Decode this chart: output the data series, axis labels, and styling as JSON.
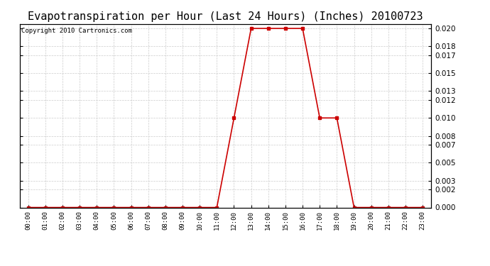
{
  "title": "Evapotranspiration per Hour (Last 24 Hours) (Inches) 20100723",
  "copyright_text": "Copyright 2010 Cartronics.com",
  "x_labels": [
    "00:00",
    "01:00",
    "02:00",
    "03:00",
    "04:00",
    "05:00",
    "06:00",
    "07:00",
    "08:00",
    "09:00",
    "10:00",
    "11:00",
    "12:00",
    "13:00",
    "14:00",
    "15:00",
    "16:00",
    "17:00",
    "18:00",
    "19:00",
    "20:00",
    "21:00",
    "22:00",
    "23:00"
  ],
  "y_values": [
    0.0,
    0.0,
    0.0,
    0.0,
    0.0,
    0.0,
    0.0,
    0.0,
    0.0,
    0.0,
    0.0,
    0.0,
    0.01,
    0.02,
    0.02,
    0.02,
    0.02,
    0.01,
    0.01,
    0.0,
    0.0,
    0.0,
    0.0,
    0.0
  ],
  "y_ticks": [
    0.0,
    0.002,
    0.003,
    0.005,
    0.007,
    0.008,
    0.01,
    0.012,
    0.013,
    0.015,
    0.017,
    0.018,
    0.02
  ],
  "ylim": [
    0.0,
    0.0205
  ],
  "line_color": "#cc0000",
  "marker": "s",
  "marker_size": 2.5,
  "grid_color": "#cccccc",
  "bg_color": "#ffffff",
  "title_fontsize": 11,
  "copyright_fontsize": 6.5,
  "tick_fontsize": 7.5,
  "x_tick_fontsize": 6.5
}
